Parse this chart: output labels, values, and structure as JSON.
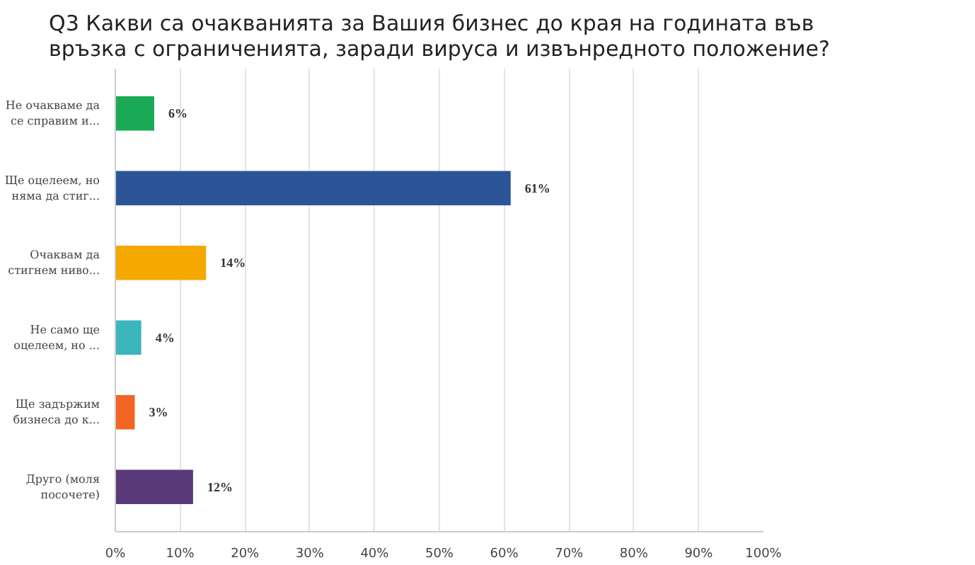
{
  "chart_data": {
    "type": "bar",
    "orientation": "horizontal",
    "title": "Q3 Какви са очакванията за Вашия бизнес до края на годината във\nвръзка с ограниченията, заради вируса и извънредното положение?",
    "categories": [
      "Не очакваме да\nсе справим и...",
      "Ще оцелеем, но\nняма да стиг...",
      "Очаквам да\nстигнем ниво...",
      "Не само ще\nоцелеем, но ...",
      "Ще задържим\nбизнеса до к...",
      "Друго (моля\nпосочете)"
    ],
    "values": [
      6,
      61,
      14,
      4,
      3,
      12
    ],
    "colors": [
      "#1aaa55",
      "#2b5597",
      "#f5a800",
      "#3cb6bd",
      "#f26522",
      "#5b3a7a"
    ],
    "value_labels": [
      "6%",
      "61%",
      "14%",
      "4%",
      "3%",
      "12%"
    ],
    "xlim": [
      0,
      100
    ],
    "xticks": [
      {
        "value": 0,
        "label": "0%"
      },
      {
        "value": 10,
        "label": "10%"
      },
      {
        "value": 20,
        "label": "20%"
      },
      {
        "value": 30,
        "label": "30%"
      },
      {
        "value": 40,
        "label": "40%"
      },
      {
        "value": 50,
        "label": "50%"
      },
      {
        "value": 60,
        "label": "60%"
      },
      {
        "value": 70,
        "label": "70%"
      },
      {
        "value": 80,
        "label": "80%"
      },
      {
        "value": 90,
        "label": "90%"
      },
      {
        "value": 100,
        "label": "100%"
      }
    ],
    "grid": "x"
  }
}
